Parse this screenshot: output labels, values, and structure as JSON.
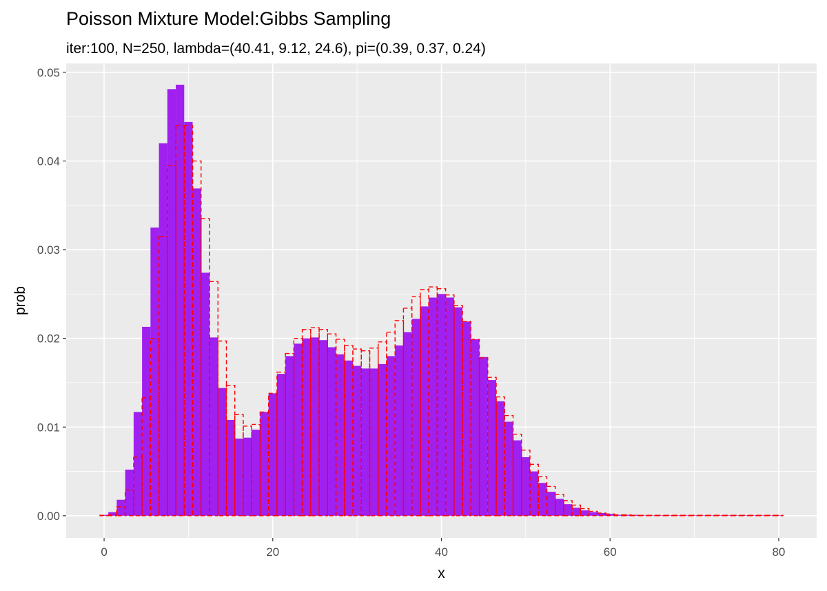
{
  "chart_data": {
    "type": "bar",
    "title": "Poisson Mixture Model:Gibbs Sampling",
    "subtitle": "iter:100, N=250, lambda=(40.41, 9.12, 24.6), pi=(0.39, 0.37, 0.24)",
    "xlabel": "x",
    "ylabel": "prob",
    "xlim": [
      -4.5,
      84.5
    ],
    "ylim": [
      -0.0025,
      0.051
    ],
    "x_ticks": [
      0,
      20,
      40,
      60,
      80
    ],
    "y_ticks": [
      0.0,
      0.01,
      0.02,
      0.03,
      0.04,
      0.05
    ],
    "x_tick_labels": [
      "0",
      "20",
      "40",
      "60",
      "80"
    ],
    "y_tick_labels": [
      "0.00",
      "0.01",
      "0.02",
      "0.03",
      "0.04",
      "0.05"
    ],
    "grid": true,
    "x": [
      0,
      1,
      2,
      3,
      4,
      5,
      6,
      7,
      8,
      9,
      10,
      11,
      12,
      13,
      14,
      15,
      16,
      17,
      18,
      19,
      20,
      21,
      22,
      23,
      24,
      25,
      26,
      27,
      28,
      29,
      30,
      31,
      32,
      33,
      34,
      35,
      36,
      37,
      38,
      39,
      40,
      41,
      42,
      43,
      44,
      45,
      46,
      47,
      48,
      49,
      50,
      51,
      52,
      53,
      54,
      55,
      56,
      57,
      58,
      59,
      60,
      61,
      62,
      63,
      64,
      65,
      66,
      67,
      68,
      69,
      70,
      71,
      72,
      73,
      74,
      75,
      76,
      77,
      78,
      79,
      80
    ],
    "series": [
      {
        "role": "samples",
        "style": "filled",
        "color": "#a020f0",
        "values": [
          0.0001,
          0.0004,
          0.0018,
          0.0052,
          0.0117,
          0.0213,
          0.0325,
          0.042,
          0.0481,
          0.0486,
          0.0444,
          0.0369,
          0.0274,
          0.0201,
          0.0144,
          0.0108,
          0.0087,
          0.0088,
          0.0097,
          0.0117,
          0.0138,
          0.016,
          0.018,
          0.0194,
          0.02,
          0.0201,
          0.0198,
          0.019,
          0.0182,
          0.0175,
          0.0169,
          0.0166,
          0.0166,
          0.0171,
          0.018,
          0.0192,
          0.0207,
          0.0222,
          0.0236,
          0.0246,
          0.025,
          0.0246,
          0.0235,
          0.0219,
          0.0199,
          0.0179,
          0.0153,
          0.0129,
          0.0106,
          0.0085,
          0.0066,
          0.005,
          0.0037,
          0.0027,
          0.0019,
          0.0013,
          0.0009,
          0.0006,
          0.0004,
          0.0003,
          0.0002,
          0.0001,
          0.0001,
          0.0001,
          0.0,
          0.0,
          0.0,
          0.0,
          0.0,
          0.0,
          0.0,
          0.0,
          0.0,
          0.0,
          0.0,
          0.0,
          0.0,
          0.0,
          0.0,
          0.0,
          0.0
        ]
      },
      {
        "role": "true distribution",
        "style": "dashed outline",
        "color": "#ff0000",
        "values": [
          0.0,
          0.0001,
          0.001,
          0.0029,
          0.0066,
          0.0133,
          0.02,
          0.0315,
          0.0395,
          0.044,
          0.044,
          0.04,
          0.0335,
          0.0264,
          0.0197,
          0.0147,
          0.0114,
          0.0101,
          0.0103,
          0.0117,
          0.0138,
          0.0162,
          0.0183,
          0.02,
          0.021,
          0.0212,
          0.021,
          0.0205,
          0.0199,
          0.0192,
          0.0188,
          0.0186,
          0.0189,
          0.0196,
          0.0207,
          0.022,
          0.0234,
          0.0247,
          0.0255,
          0.0258,
          0.0256,
          0.0249,
          0.0237,
          0.0219,
          0.0199,
          0.0178,
          0.0156,
          0.0134,
          0.0113,
          0.0092,
          0.0074,
          0.0058,
          0.0044,
          0.0033,
          0.0024,
          0.0017,
          0.0012,
          0.0008,
          0.0005,
          0.0003,
          0.0002,
          0.0001,
          0.0001,
          0.0,
          0.0,
          0.0,
          0.0,
          0.0,
          0.0,
          0.0,
          0.0,
          0.0,
          0.0,
          0.0,
          0.0,
          0.0,
          0.0,
          0.0,
          0.0,
          0.0,
          0.0
        ]
      }
    ]
  }
}
